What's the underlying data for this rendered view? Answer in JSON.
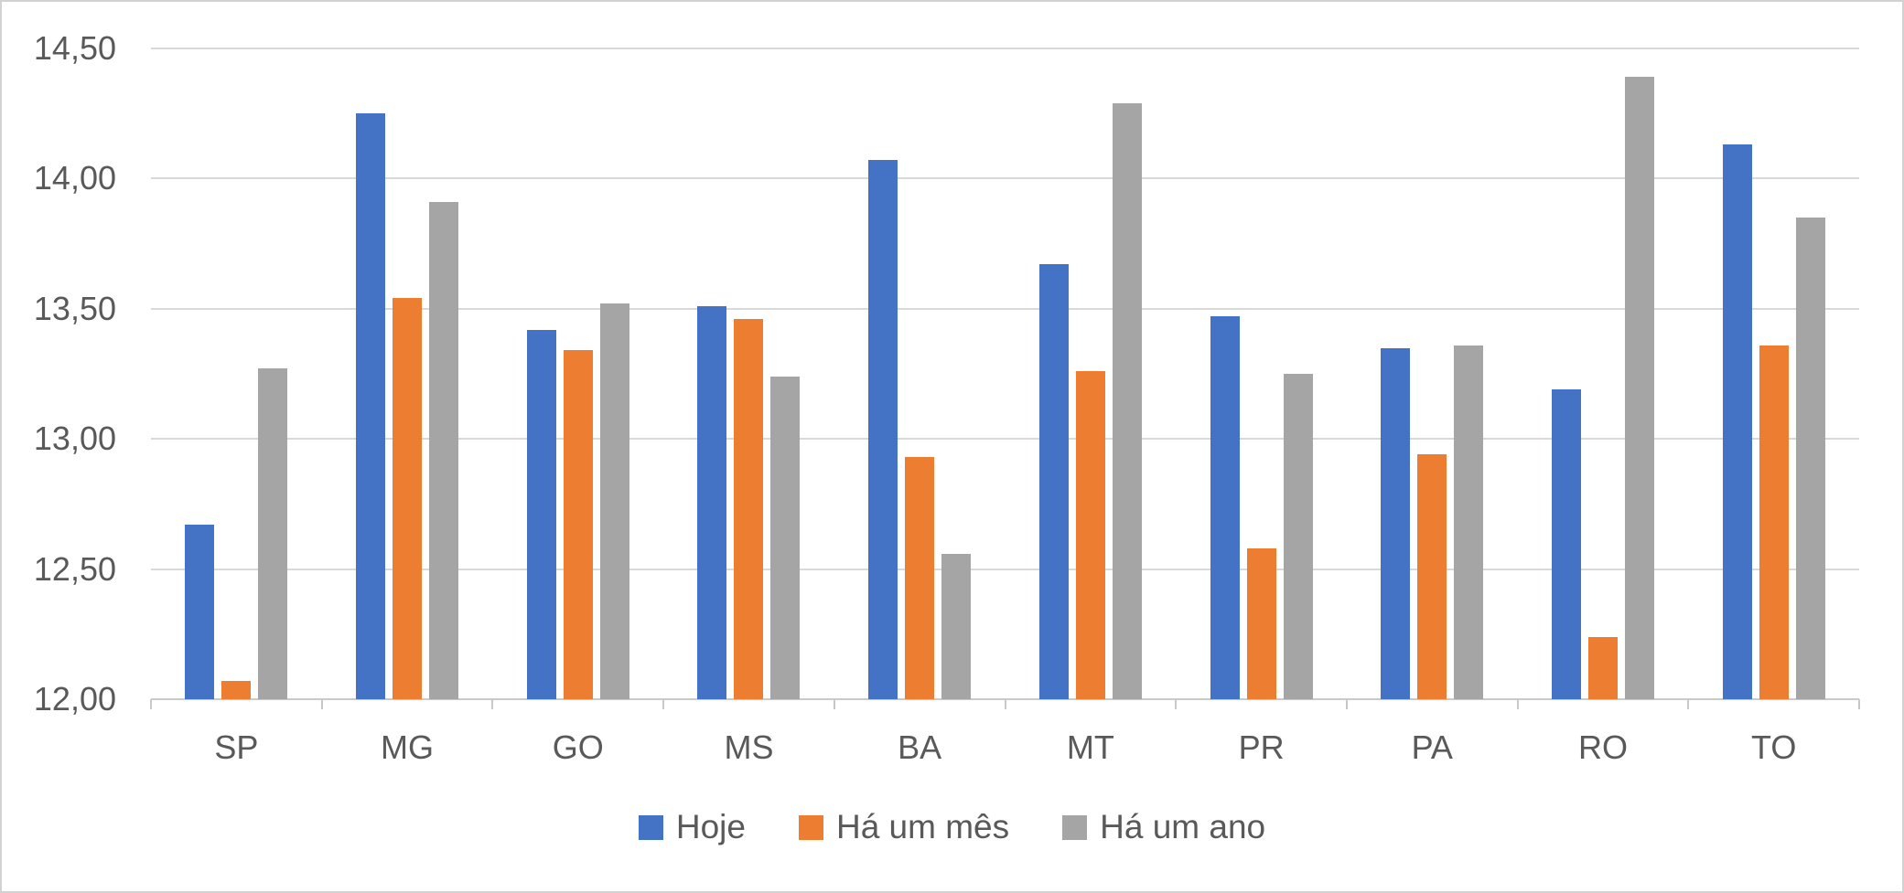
{
  "chart_data": {
    "type": "bar",
    "title": "",
    "categories": [
      "SP",
      "MG",
      "GO",
      "MS",
      "BA",
      "MT",
      "PR",
      "PA",
      "RO",
      "TO"
    ],
    "series": [
      {
        "name": "Hoje",
        "color": "#4472C4",
        "values": [
          12.67,
          14.25,
          13.42,
          13.51,
          14.07,
          13.67,
          13.47,
          13.35,
          13.19,
          14.13
        ]
      },
      {
        "name": "Há um mês",
        "color": "#ED7D31",
        "values": [
          12.07,
          13.54,
          13.34,
          13.46,
          12.93,
          13.26,
          12.58,
          12.94,
          12.24,
          13.36
        ]
      },
      {
        "name": "Há um ano",
        "color": "#A5A5A5",
        "values": [
          13.27,
          13.91,
          13.52,
          13.24,
          12.56,
          14.29,
          13.25,
          13.36,
          14.39,
          13.85
        ]
      }
    ],
    "ylim": [
      12.0,
      14.5
    ],
    "ytick_step": 0.5,
    "yticks": [
      {
        "value": 14.5,
        "label": "14,50"
      },
      {
        "value": 14.0,
        "label": "14,00"
      },
      {
        "value": 13.5,
        "label": "13,50"
      },
      {
        "value": 13.0,
        "label": "13,00"
      },
      {
        "value": 12.5,
        "label": "12,50"
      },
      {
        "value": 12.0,
        "label": "12,00"
      }
    ],
    "grid": true,
    "legend_position": "bottom",
    "decimal_separator": ",",
    "xlabel": "",
    "ylabel": ""
  },
  "colors": {
    "gridline": "#D9D9D9",
    "axis_text": "#595959",
    "frame_border": "#D2D2D2",
    "background": "#FFFFFF"
  }
}
